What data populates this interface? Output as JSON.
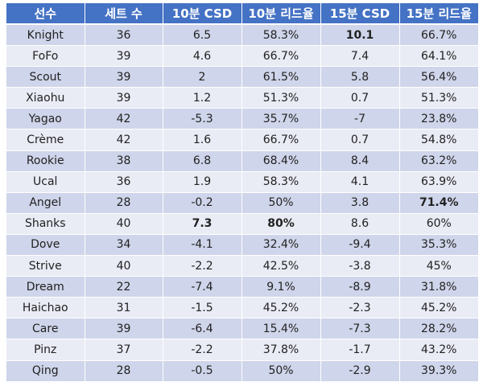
{
  "table": {
    "headers": [
      "선수",
      "세트 수",
      "10분 CSD",
      "10분 리드율",
      "15분 CSD",
      "15분 리드율"
    ],
    "rows": [
      {
        "player": "Knight",
        "sets": "36",
        "csd10": "6.5",
        "lead10": "58.3%",
        "csd15": "10.1",
        "lead15": "66.7%",
        "bold": [
          "csd15"
        ]
      },
      {
        "player": "FoFo",
        "sets": "39",
        "csd10": "4.6",
        "lead10": "66.7%",
        "csd15": "7.4",
        "lead15": "64.1%",
        "bold": []
      },
      {
        "player": "Scout",
        "sets": "39",
        "csd10": "2",
        "lead10": "61.5%",
        "csd15": "5.8",
        "lead15": "56.4%",
        "bold": []
      },
      {
        "player": "Xiaohu",
        "sets": "39",
        "csd10": "1.2",
        "lead10": "51.3%",
        "csd15": "0.7",
        "lead15": "51.3%",
        "bold": []
      },
      {
        "player": "Yagao",
        "sets": "42",
        "csd10": "-5.3",
        "lead10": "35.7%",
        "csd15": "-7",
        "lead15": "23.8%",
        "bold": []
      },
      {
        "player": "Crème",
        "sets": "42",
        "csd10": "1.6",
        "lead10": "66.7%",
        "csd15": "0.7",
        "lead15": "54.8%",
        "bold": []
      },
      {
        "player": "Rookie",
        "sets": "38",
        "csd10": "6.8",
        "lead10": "68.4%",
        "csd15": "8.4",
        "lead15": "63.2%",
        "bold": []
      },
      {
        "player": "Ucal",
        "sets": "36",
        "csd10": "1.9",
        "lead10": "58.3%",
        "csd15": "4.1",
        "lead15": "63.9%",
        "bold": []
      },
      {
        "player": "Angel",
        "sets": "28",
        "csd10": "-0.2",
        "lead10": "50%",
        "csd15": "3.8",
        "lead15": "71.4%",
        "bold": [
          "lead15"
        ]
      },
      {
        "player": "Shanks",
        "sets": "40",
        "csd10": "7.3",
        "lead10": "80%",
        "csd15": "8.6",
        "lead15": "60%",
        "bold": [
          "csd10",
          "lead10"
        ]
      },
      {
        "player": "Dove",
        "sets": "34",
        "csd10": "-4.1",
        "lead10": "32.4%",
        "csd15": "-9.4",
        "lead15": "35.3%",
        "bold": []
      },
      {
        "player": "Strive",
        "sets": "40",
        "csd10": "-2.2",
        "lead10": "42.5%",
        "csd15": "-3.8",
        "lead15": "45%",
        "bold": []
      },
      {
        "player": "Dream",
        "sets": "22",
        "csd10": "-7.4",
        "lead10": "9.1%",
        "csd15": "-8.9",
        "lead15": "31.8%",
        "bold": []
      },
      {
        "player": "Haichao",
        "sets": "31",
        "csd10": "-1.5",
        "lead10": "45.2%",
        "csd15": "-2.3",
        "lead15": "45.2%",
        "bold": []
      },
      {
        "player": "Care",
        "sets": "39",
        "csd10": "-6.4",
        "lead10": "15.4%",
        "csd15": "-7.3",
        "lead15": "28.2%",
        "bold": []
      },
      {
        "player": "Pinz",
        "sets": "37",
        "csd10": "-2.2",
        "lead10": "37.8%",
        "csd15": "-1.7",
        "lead15": "43.2%",
        "bold": []
      },
      {
        "player": "Qing",
        "sets": "28",
        "csd10": "-0.5",
        "lead10": "50%",
        "csd15": "-2.9",
        "lead15": "39.3%",
        "bold": []
      }
    ]
  },
  "colors": {
    "header_bg": "#4472c4",
    "header_text": "#ffffff",
    "row_odd_bg": "#cfd5ea",
    "row_even_bg": "#e9ebf5",
    "cell_text": "#222222"
  }
}
